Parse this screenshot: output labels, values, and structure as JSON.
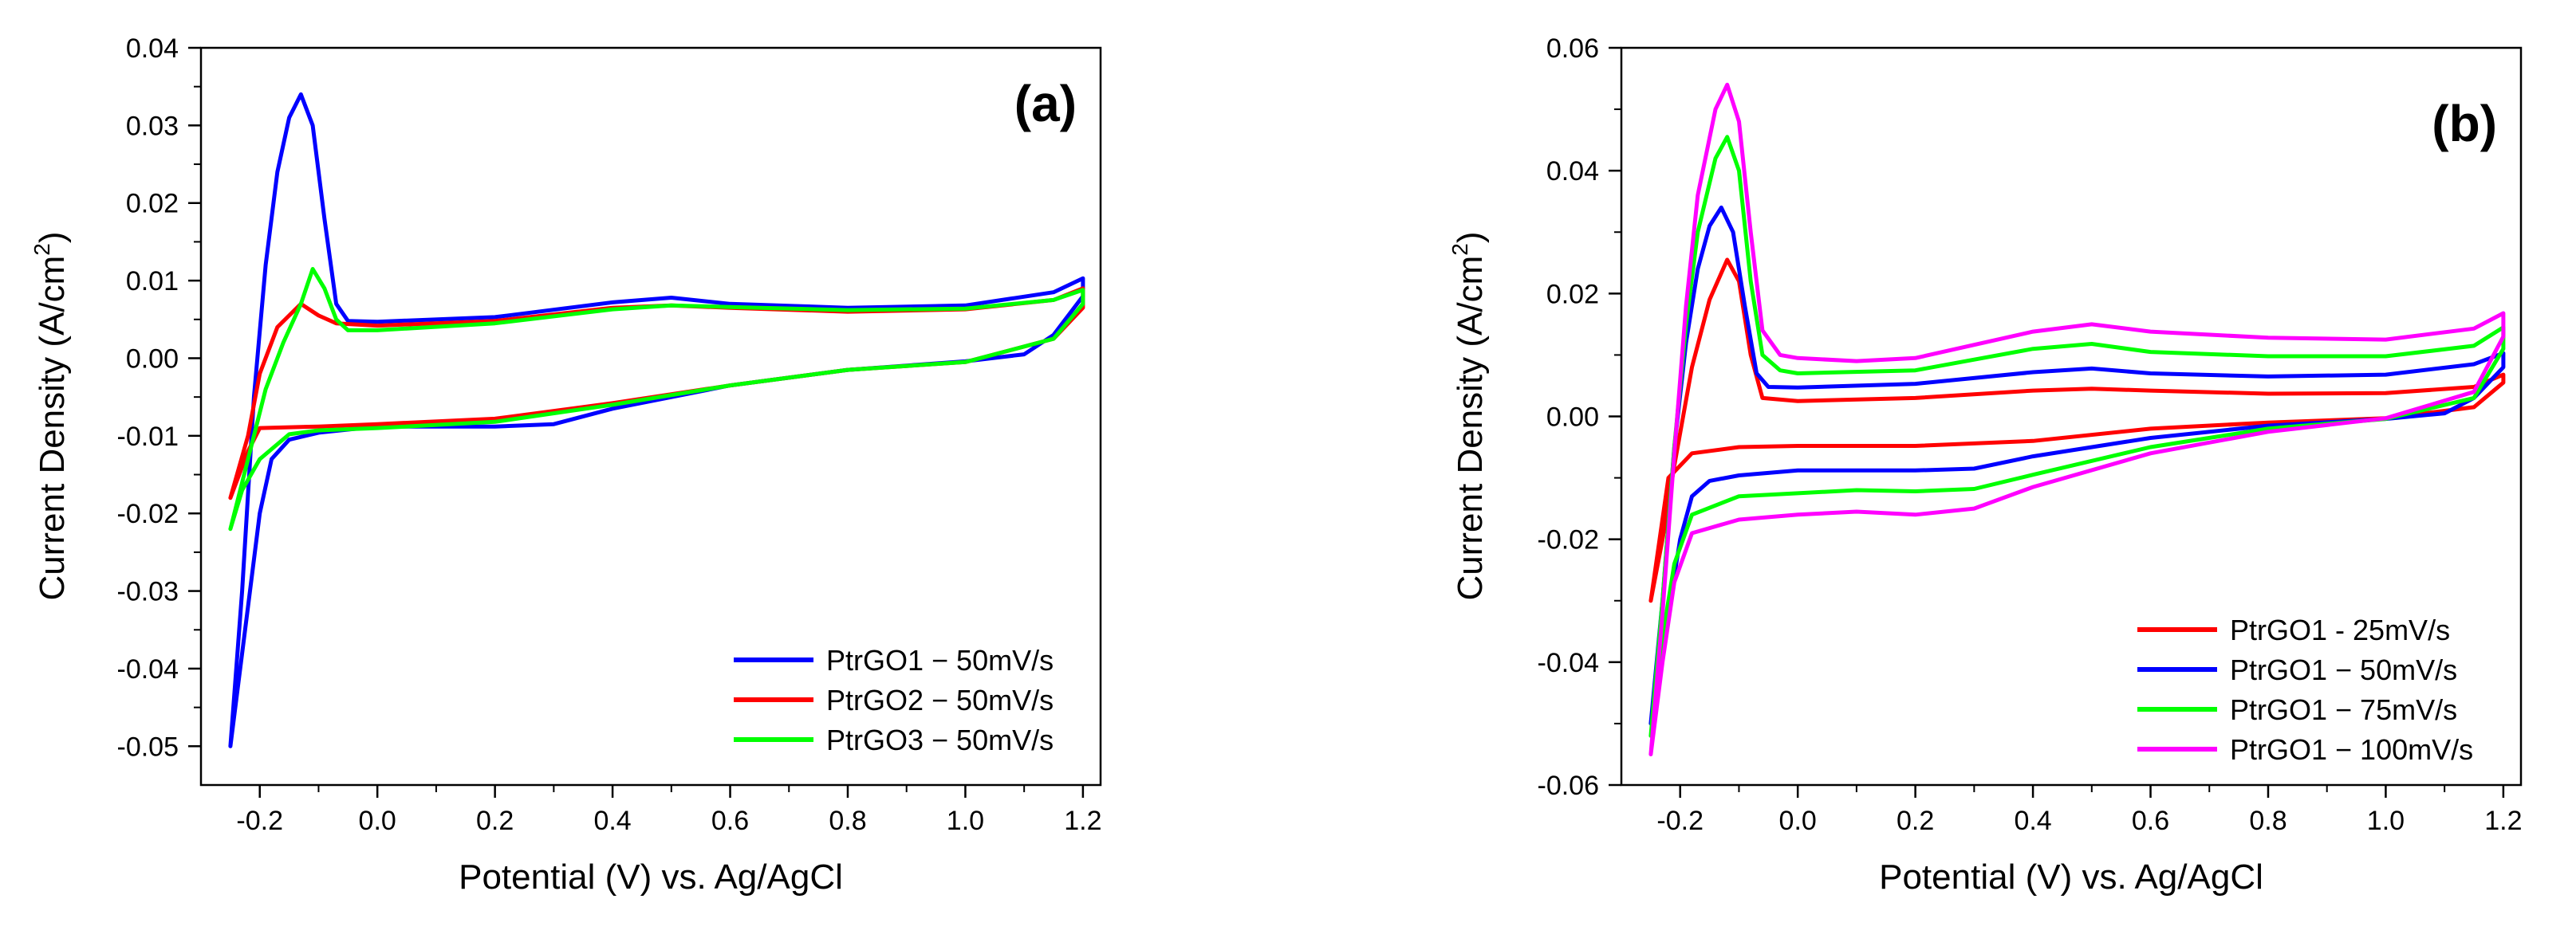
{
  "chart_data": [
    {
      "type": "line",
      "panel_label": "(a)",
      "xlabel": "Potential (V) vs. Ag/AgCl",
      "ylabel_main": "Current Density (A/cm",
      "ylabel_sup": "2",
      "ylabel_close": ")",
      "xlim": [
        -0.3,
        1.23
      ],
      "ylim": [
        -0.055,
        0.04
      ],
      "xticks": [
        -0.2,
        0.0,
        0.2,
        0.4,
        0.6,
        0.8,
        1.0,
        1.2
      ],
      "xtick_labels": [
        "-0.2",
        "0.0",
        "0.2",
        "0.4",
        "0.6",
        "0.8",
        "1.0",
        "1.2"
      ],
      "yticks": [
        -0.05,
        -0.04,
        -0.03,
        -0.02,
        -0.01,
        0.0,
        0.01,
        0.02,
        0.03,
        0.04
      ],
      "ytick_labels": [
        "-0.05",
        "-0.04",
        "-0.03",
        "-0.02",
        "-0.01",
        "0.00",
        "0.01",
        "0.02",
        "0.03",
        "0.04"
      ],
      "legend_position": "bottom-right",
      "series": [
        {
          "name": "PtrGO1 − 50mV/s",
          "color": "#0000ff",
          "points": [
            [
              -0.25,
              -0.05
            ],
            [
              -0.23,
              -0.03
            ],
            [
              -0.21,
              -0.005
            ],
            [
              -0.19,
              0.012
            ],
            [
              -0.17,
              0.024
            ],
            [
              -0.15,
              0.031
            ],
            [
              -0.13,
              0.034
            ],
            [
              -0.11,
              0.03
            ],
            [
              -0.09,
              0.018
            ],
            [
              -0.07,
              0.007
            ],
            [
              -0.05,
              0.0048
            ],
            [
              0.0,
              0.0047
            ],
            [
              0.2,
              0.0053
            ],
            [
              0.4,
              0.0072
            ],
            [
              0.5,
              0.0078
            ],
            [
              0.6,
              0.007
            ],
            [
              0.8,
              0.0065
            ],
            [
              1.0,
              0.0068
            ],
            [
              1.15,
              0.0085
            ],
            [
              1.2,
              0.0103
            ],
            [
              1.2,
              0.008
            ],
            [
              1.15,
              0.003
            ],
            [
              1.1,
              0.0005
            ],
            [
              1.0,
              -0.0004
            ],
            [
              0.8,
              -0.0015
            ],
            [
              0.6,
              -0.0035
            ],
            [
              0.4,
              -0.0065
            ],
            [
              0.3,
              -0.0085
            ],
            [
              0.2,
              -0.0088
            ],
            [
              0.0,
              -0.0088
            ],
            [
              -0.1,
              -0.0096
            ],
            [
              -0.15,
              -0.0105
            ],
            [
              -0.18,
              -0.013
            ],
            [
              -0.2,
              -0.02
            ],
            [
              -0.22,
              -0.032
            ],
            [
              -0.25,
              -0.05
            ]
          ]
        },
        {
          "name": "PtrGO2 − 50mV/s",
          "color": "#ff0000",
          "points": [
            [
              -0.25,
              -0.018
            ],
            [
              -0.22,
              -0.01
            ],
            [
              -0.2,
              -0.002
            ],
            [
              -0.17,
              0.004
            ],
            [
              -0.13,
              0.007
            ],
            [
              -0.1,
              0.0055
            ],
            [
              -0.07,
              0.0045
            ],
            [
              0.0,
              0.0042
            ],
            [
              0.2,
              0.0048
            ],
            [
              0.4,
              0.0065
            ],
            [
              0.5,
              0.0068
            ],
            [
              0.6,
              0.0065
            ],
            [
              0.8,
              0.006
            ],
            [
              1.0,
              0.0063
            ],
            [
              1.15,
              0.0075
            ],
            [
              1.2,
              0.009
            ],
            [
              1.2,
              0.0065
            ],
            [
              1.15,
              0.0025
            ],
            [
              1.0,
              -0.0005
            ],
            [
              0.8,
              -0.0015
            ],
            [
              0.6,
              -0.0035
            ],
            [
              0.4,
              -0.0058
            ],
            [
              0.2,
              -0.0078
            ],
            [
              0.0,
              -0.0085
            ],
            [
              -0.1,
              -0.0088
            ],
            [
              -0.2,
              -0.009
            ],
            [
              -0.22,
              -0.012
            ],
            [
              -0.25,
              -0.018
            ]
          ]
        },
        {
          "name": "PtrGO3 − 50mV/s",
          "color": "#00ff00",
          "points": [
            [
              -0.25,
              -0.022
            ],
            [
              -0.22,
              -0.013
            ],
            [
              -0.19,
              -0.004
            ],
            [
              -0.16,
              0.002
            ],
            [
              -0.13,
              0.007
            ],
            [
              -0.11,
              0.0115
            ],
            [
              -0.09,
              0.009
            ],
            [
              -0.07,
              0.005
            ],
            [
              -0.05,
              0.0036
            ],
            [
              0.0,
              0.0036
            ],
            [
              0.2,
              0.0045
            ],
            [
              0.4,
              0.0063
            ],
            [
              0.5,
              0.0068
            ],
            [
              0.6,
              0.0066
            ],
            [
              0.8,
              0.0062
            ],
            [
              1.0,
              0.0064
            ],
            [
              1.15,
              0.0075
            ],
            [
              1.2,
              0.0088
            ],
            [
              1.2,
              0.007
            ],
            [
              1.15,
              0.0025
            ],
            [
              1.0,
              -0.0005
            ],
            [
              0.8,
              -0.0015
            ],
            [
              0.6,
              -0.0035
            ],
            [
              0.4,
              -0.006
            ],
            [
              0.2,
              -0.0082
            ],
            [
              0.0,
              -0.009
            ],
            [
              -0.1,
              -0.0093
            ],
            [
              -0.15,
              -0.0098
            ],
            [
              -0.2,
              -0.013
            ],
            [
              -0.23,
              -0.017
            ],
            [
              -0.25,
              -0.022
            ]
          ]
        }
      ]
    },
    {
      "type": "line",
      "panel_label": "(b)",
      "xlabel": "Potential (V) vs. Ag/AgCl",
      "ylabel_main": "Current Density (A/cm",
      "ylabel_sup": "2",
      "ylabel_close": ")",
      "xlim": [
        -0.3,
        1.23
      ],
      "ylim": [
        -0.06,
        0.06
      ],
      "xticks": [
        -0.2,
        0.0,
        0.2,
        0.4,
        0.6,
        0.8,
        1.0,
        1.2
      ],
      "xtick_labels": [
        "-0.2",
        "0.0",
        "0.2",
        "0.4",
        "0.6",
        "0.8",
        "1.0",
        "1.2"
      ],
      "yticks": [
        -0.06,
        -0.04,
        -0.02,
        0.0,
        0.02,
        0.04,
        0.06
      ],
      "ytick_labels": [
        "-0.06",
        "-0.04",
        "-0.02",
        "0.00",
        "0.02",
        "0.04",
        "0.06"
      ],
      "legend_position": "bottom-right",
      "series": [
        {
          "name": "PtrGO1 - 25mV/s",
          "color": "#ff0000",
          "points": [
            [
              -0.25,
              -0.03
            ],
            [
              -0.23,
              -0.02
            ],
            [
              -0.21,
              -0.008
            ],
            [
              -0.18,
              0.008
            ],
            [
              -0.15,
              0.019
            ],
            [
              -0.12,
              0.0255
            ],
            [
              -0.1,
              0.022
            ],
            [
              -0.08,
              0.01
            ],
            [
              -0.06,
              0.003
            ],
            [
              0.0,
              0.0025
            ],
            [
              0.2,
              0.003
            ],
            [
              0.4,
              0.0042
            ],
            [
              0.5,
              0.0045
            ],
            [
              0.6,
              0.0042
            ],
            [
              0.8,
              0.0037
            ],
            [
              1.0,
              0.0038
            ],
            [
              1.15,
              0.0048
            ],
            [
              1.2,
              0.0068
            ],
            [
              1.2,
              0.0055
            ],
            [
              1.15,
              0.0015
            ],
            [
              1.0,
              -0.0003
            ],
            [
              0.8,
              -0.001
            ],
            [
              0.6,
              -0.002
            ],
            [
              0.4,
              -0.004
            ],
            [
              0.2,
              -0.0048
            ],
            [
              0.0,
              -0.0048
            ],
            [
              -0.1,
              -0.005
            ],
            [
              -0.18,
              -0.006
            ],
            [
              -0.22,
              -0.01
            ],
            [
              -0.25,
              -0.03
            ]
          ]
        },
        {
          "name": "PtrGO1 − 50mV/s",
          "color": "#0000ff",
          "points": [
            [
              -0.25,
              -0.05
            ],
            [
              -0.23,
              -0.03
            ],
            [
              -0.21,
              -0.005
            ],
            [
              -0.19,
              0.012
            ],
            [
              -0.17,
              0.024
            ],
            [
              -0.15,
              0.031
            ],
            [
              -0.13,
              0.034
            ],
            [
              -0.11,
              0.03
            ],
            [
              -0.09,
              0.018
            ],
            [
              -0.07,
              0.007
            ],
            [
              -0.05,
              0.0048
            ],
            [
              0.0,
              0.0047
            ],
            [
              0.2,
              0.0053
            ],
            [
              0.4,
              0.0072
            ],
            [
              0.5,
              0.0078
            ],
            [
              0.6,
              0.007
            ],
            [
              0.8,
              0.0065
            ],
            [
              1.0,
              0.0068
            ],
            [
              1.15,
              0.0085
            ],
            [
              1.2,
              0.0103
            ],
            [
              1.2,
              0.008
            ],
            [
              1.15,
              0.003
            ],
            [
              1.1,
              0.0005
            ],
            [
              1.0,
              -0.0004
            ],
            [
              0.8,
              -0.0015
            ],
            [
              0.6,
              -0.0035
            ],
            [
              0.4,
              -0.0065
            ],
            [
              0.3,
              -0.0085
            ],
            [
              0.2,
              -0.0088
            ],
            [
              0.0,
              -0.0088
            ],
            [
              -0.1,
              -0.0096
            ],
            [
              -0.15,
              -0.0105
            ],
            [
              -0.18,
              -0.013
            ],
            [
              -0.2,
              -0.02
            ],
            [
              -0.22,
              -0.032
            ],
            [
              -0.25,
              -0.05
            ]
          ]
        },
        {
          "name": "PtrGO1 − 75mV/s",
          "color": "#00ff00",
          "points": [
            [
              -0.25,
              -0.052
            ],
            [
              -0.23,
              -0.03
            ],
            [
              -0.21,
              -0.005
            ],
            [
              -0.19,
              0.015
            ],
            [
              -0.17,
              0.03
            ],
            [
              -0.14,
              0.042
            ],
            [
              -0.12,
              0.0455
            ],
            [
              -0.1,
              0.04
            ],
            [
              -0.08,
              0.022
            ],
            [
              -0.06,
              0.01
            ],
            [
              -0.03,
              0.0075
            ],
            [
              0.0,
              0.007
            ],
            [
              0.2,
              0.0075
            ],
            [
              0.4,
              0.011
            ],
            [
              0.5,
              0.0118
            ],
            [
              0.6,
              0.0105
            ],
            [
              0.8,
              0.0098
            ],
            [
              1.0,
              0.0098
            ],
            [
              1.15,
              0.0115
            ],
            [
              1.2,
              0.0145
            ],
            [
              1.2,
              0.011
            ],
            [
              1.15,
              0.003
            ],
            [
              1.0,
              -0.0004
            ],
            [
              0.8,
              -0.002
            ],
            [
              0.6,
              -0.005
            ],
            [
              0.4,
              -0.0095
            ],
            [
              0.3,
              -0.0118
            ],
            [
              0.2,
              -0.0122
            ],
            [
              0.1,
              -0.012
            ],
            [
              0.0,
              -0.0125
            ],
            [
              -0.1,
              -0.013
            ],
            [
              -0.18,
              -0.016
            ],
            [
              -0.21,
              -0.024
            ],
            [
              -0.23,
              -0.036
            ],
            [
              -0.25,
              -0.052
            ]
          ]
        },
        {
          "name": "PtrGO1 − 100mV/s",
          "color": "#ff00ff",
          "points": [
            [
              -0.25,
              -0.055
            ],
            [
              -0.23,
              -0.032
            ],
            [
              -0.21,
              -0.006
            ],
            [
              -0.19,
              0.018
            ],
            [
              -0.17,
              0.036
            ],
            [
              -0.14,
              0.05
            ],
            [
              -0.12,
              0.054
            ],
            [
              -0.1,
              0.048
            ],
            [
              -0.08,
              0.03
            ],
            [
              -0.06,
              0.014
            ],
            [
              -0.03,
              0.01
            ],
            [
              0.0,
              0.0095
            ],
            [
              0.1,
              0.009
            ],
            [
              0.2,
              0.0095
            ],
            [
              0.4,
              0.0138
            ],
            [
              0.5,
              0.015
            ],
            [
              0.6,
              0.0138
            ],
            [
              0.8,
              0.0128
            ],
            [
              1.0,
              0.0125
            ],
            [
              1.15,
              0.0143
            ],
            [
              1.2,
              0.0168
            ],
            [
              1.2,
              0.013
            ],
            [
              1.15,
              0.004
            ],
            [
              1.0,
              -0.0003
            ],
            [
              0.8,
              -0.0025
            ],
            [
              0.6,
              -0.006
            ],
            [
              0.4,
              -0.0115
            ],
            [
              0.3,
              -0.015
            ],
            [
              0.2,
              -0.016
            ],
            [
              0.1,
              -0.0155
            ],
            [
              0.0,
              -0.016
            ],
            [
              -0.1,
              -0.0168
            ],
            [
              -0.18,
              -0.019
            ],
            [
              -0.21,
              -0.027
            ],
            [
              -0.23,
              -0.04
            ],
            [
              -0.25,
              -0.055
            ]
          ]
        }
      ]
    }
  ]
}
